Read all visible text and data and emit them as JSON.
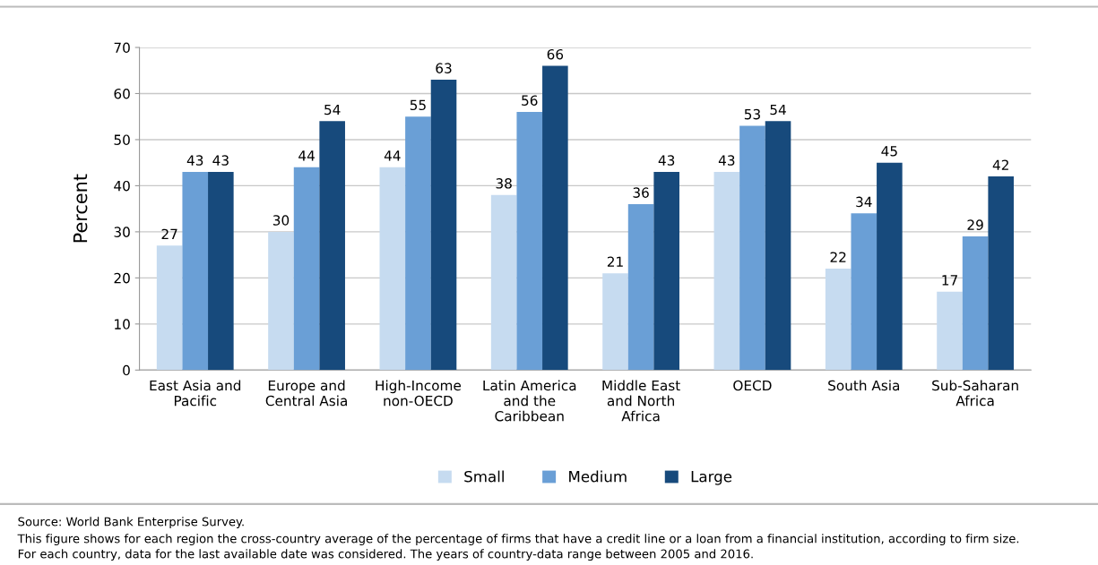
{
  "chart_data": {
    "type": "bar",
    "categories": [
      "East Asia and\nPacific",
      "Europe and\nCentral Asia",
      "High-Income\nnon-OECD",
      "Latin America\nand the\nCaribbean",
      "Middle East\nand North\nAfrica",
      "OECD",
      "South Asia",
      "Sub-Saharan\nAfrica"
    ],
    "series": [
      {
        "name": "Small",
        "color": "#c6dbf0",
        "values": [
          27,
          30,
          44,
          38,
          21,
          43,
          22,
          17
        ]
      },
      {
        "name": "Medium",
        "color": "#6a9fd6",
        "values": [
          43,
          44,
          55,
          56,
          36,
          53,
          34,
          29
        ]
      },
      {
        "name": "Large",
        "color": "#174a7c",
        "values": [
          43,
          54,
          63,
          66,
          43,
          54,
          45,
          42
        ]
      }
    ],
    "ylabel": "Percent",
    "ylim": [
      0,
      70
    ],
    "yticks": [
      0,
      10,
      20,
      30,
      40,
      50,
      60,
      70
    ],
    "grid": "y",
    "legend": "bottom",
    "data_labels": true,
    "annotations": [
      "Source: World Bank Enterprise Survey.",
      "This figure shows for each region the cross-country average of the percentage of firms that have a credit line or a loan from a financial institution, according to firm size.",
      "For each country, data for the last available date was considered. The years of country-data range between 2005 and 2016."
    ]
  }
}
